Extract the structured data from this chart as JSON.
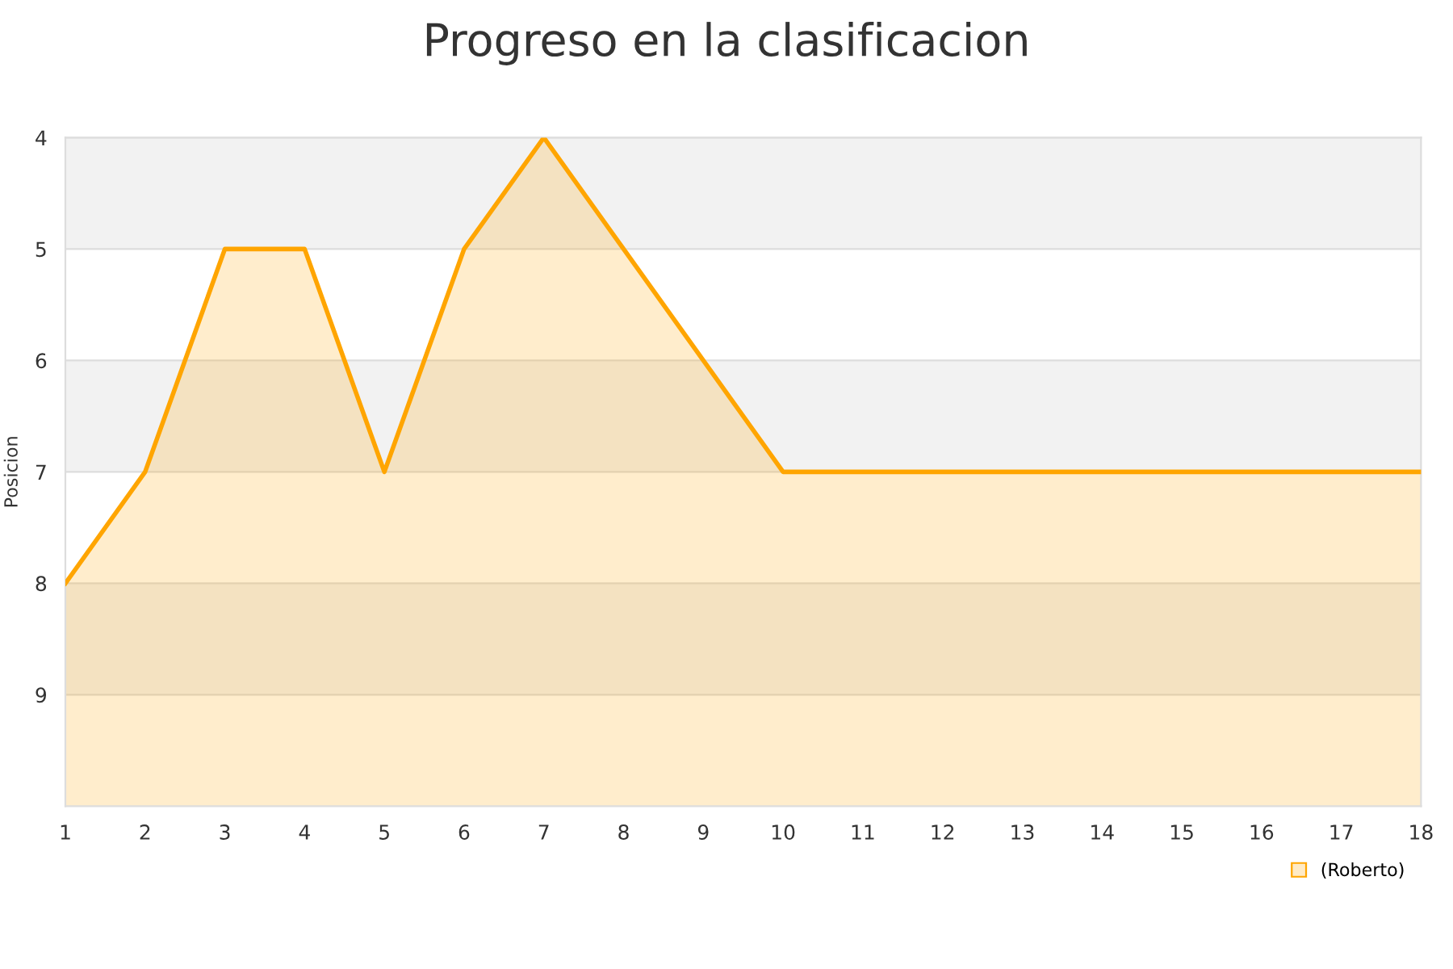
{
  "chart_data": {
    "type": "area",
    "title": "Progreso en la clasificacion",
    "ylabel": "Posicion",
    "x": [
      1,
      2,
      3,
      4,
      5,
      6,
      7,
      8,
      9,
      10,
      11,
      12,
      13,
      14,
      15,
      16,
      17,
      18
    ],
    "series": [
      {
        "name": "(Roberto)",
        "color": "#ffa500",
        "values": [
          8,
          7,
          5,
          5,
          7,
          5,
          4,
          5,
          6,
          7,
          7,
          7,
          7,
          7,
          7,
          7,
          7,
          7
        ]
      }
    ],
    "xlim": [
      1,
      18
    ],
    "xticks": [
      1,
      2,
      3,
      4,
      5,
      6,
      7,
      8,
      9,
      10,
      11,
      12,
      13,
      14,
      15,
      16,
      17,
      18
    ],
    "ylim": [
      10,
      4
    ],
    "yticks": [
      4,
      5,
      6,
      7,
      8,
      9
    ],
    "bands": [
      {
        "axis": "y",
        "from": 4,
        "to": 5,
        "color": "#f2f2f2"
      },
      {
        "axis": "y",
        "from": 6,
        "to": 7,
        "color": "#f2f2f2"
      },
      {
        "axis": "y",
        "from": 8,
        "to": 9,
        "color": "#f2f2f2"
      }
    ],
    "grid": "y",
    "legend": "bottom right",
    "marker": "none",
    "line_style": "solid"
  }
}
